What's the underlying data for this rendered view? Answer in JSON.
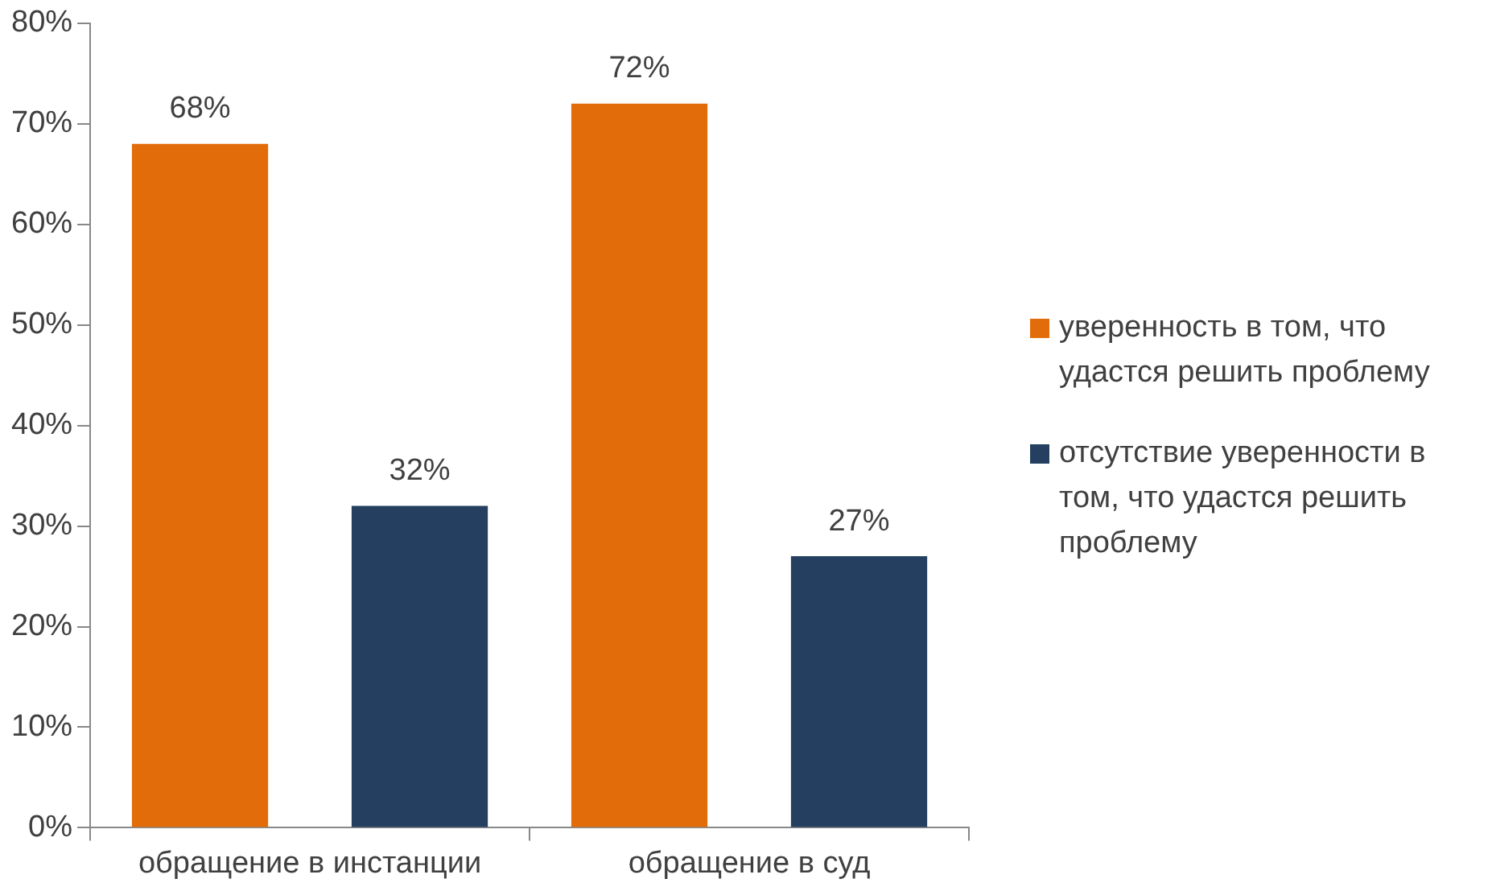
{
  "chart_data": {
    "type": "bar",
    "categories": [
      "обращение в инстанции",
      "обращение в суд"
    ],
    "series": [
      {
        "name": "уверенность в том, что удастся решить проблему",
        "color": "#e36c0a",
        "values": [
          68,
          72
        ]
      },
      {
        "name": "отсутствие уверенности в том, что удастся решить проблему",
        "color": "#243f60",
        "values": [
          32,
          27
        ]
      }
    ],
    "value_labels": [
      [
        "68%",
        "72%"
      ],
      [
        "32%",
        "27%"
      ]
    ],
    "ylim": [
      0,
      80
    ],
    "yticks": [
      {
        "value": 0,
        "label": "0%"
      },
      {
        "value": 10,
        "label": "10%"
      },
      {
        "value": 20,
        "label": "20%"
      },
      {
        "value": 30,
        "label": "30%"
      },
      {
        "value": 40,
        "label": "40%"
      },
      {
        "value": 50,
        "label": "50%"
      },
      {
        "value": 60,
        "label": "60%"
      },
      {
        "value": 70,
        "label": "70%"
      },
      {
        "value": 80,
        "label": "80%"
      }
    ],
    "grid": false,
    "legend": "right"
  }
}
